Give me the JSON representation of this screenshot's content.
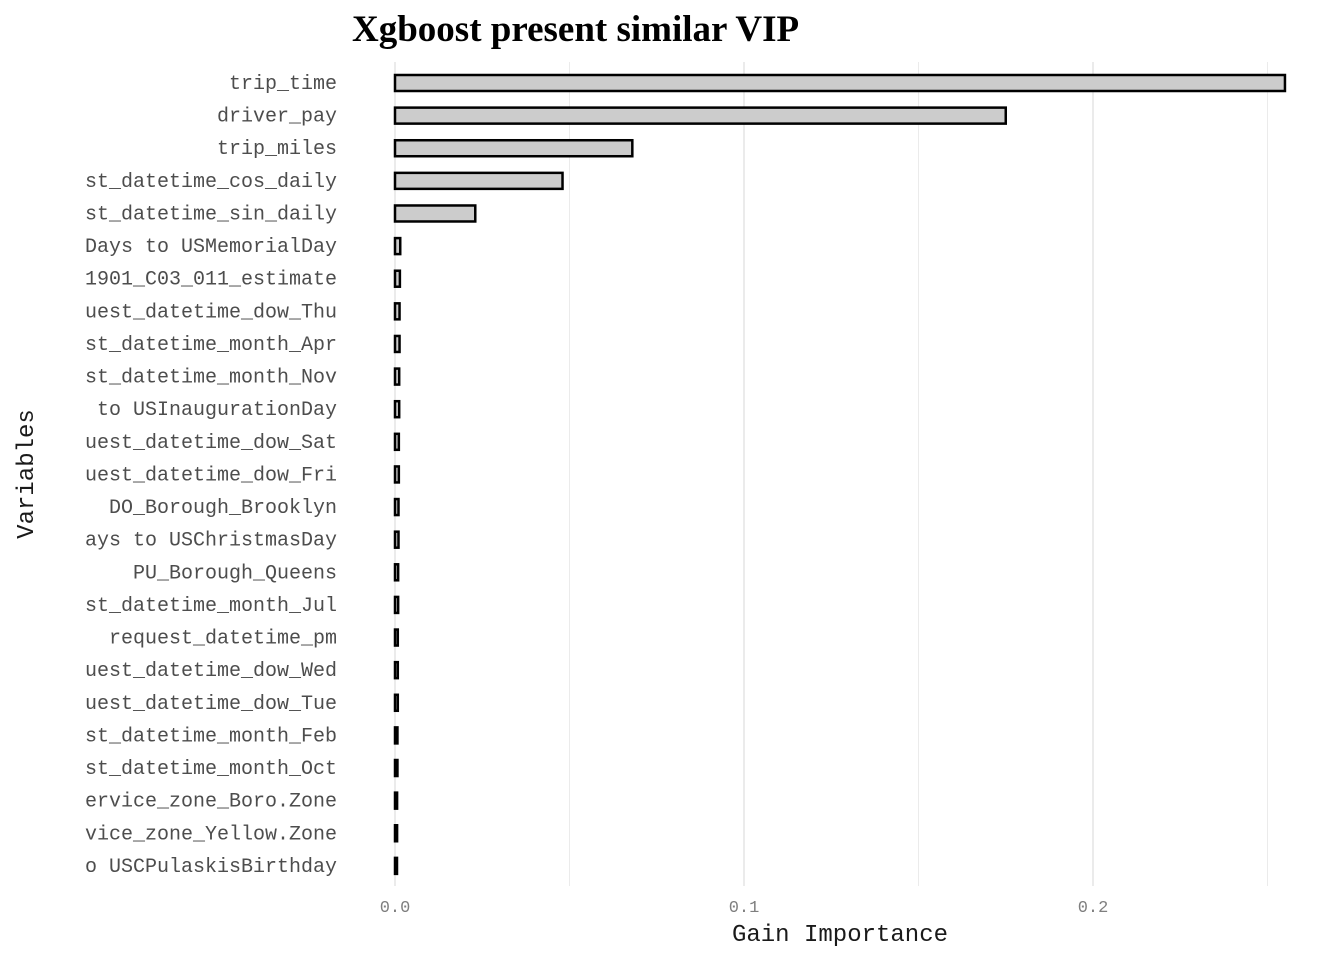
{
  "chart_data": {
    "type": "bar",
    "orientation": "horizontal",
    "title": "Xgboost present similar VIP",
    "xlabel": "Gain Importance",
    "ylabel": "Variables",
    "xlim": [
      0,
      0.26
    ],
    "xticks": [
      0.0,
      0.1,
      0.2
    ],
    "xtick_labels": [
      "0.0",
      "0.1",
      "0.2"
    ],
    "grid": true,
    "bar_fill": "#cccccc",
    "bar_stroke": "#000000",
    "categories": [
      "trip_time",
      "driver_pay",
      "trip_miles",
      "st_datetime_cos_daily",
      "st_datetime_sin_daily",
      "Days to USMemorialDay",
      "1901_C03_011_estimate",
      "uest_datetime_dow_Thu",
      "st_datetime_month_Apr",
      "st_datetime_month_Nov",
      " to USInaugurationDay",
      "uest_datetime_dow_Sat",
      "uest_datetime_dow_Fri",
      "DO_Borough_Brooklyn",
      "ays to USChristmasDay",
      "PU_Borough_Queens",
      "st_datetime_month_Jul",
      "request_datetime_pm",
      "uest_datetime_dow_Wed",
      "uest_datetime_dow_Tue",
      "st_datetime_month_Feb",
      "st_datetime_month_Oct",
      "ervice_zone_Boro.Zone",
      "vice_zone_Yellow.Zone",
      "o USCPulaskisBirthday"
    ],
    "values": [
      0.255,
      0.175,
      0.068,
      0.048,
      0.023,
      0.0015,
      0.0014,
      0.0013,
      0.0013,
      0.0012,
      0.0012,
      0.0011,
      0.0011,
      0.001,
      0.001,
      0.0009,
      0.0009,
      0.0008,
      0.0008,
      0.0008,
      0.0007,
      0.0007,
      0.0006,
      0.0006,
      0.0005
    ]
  }
}
